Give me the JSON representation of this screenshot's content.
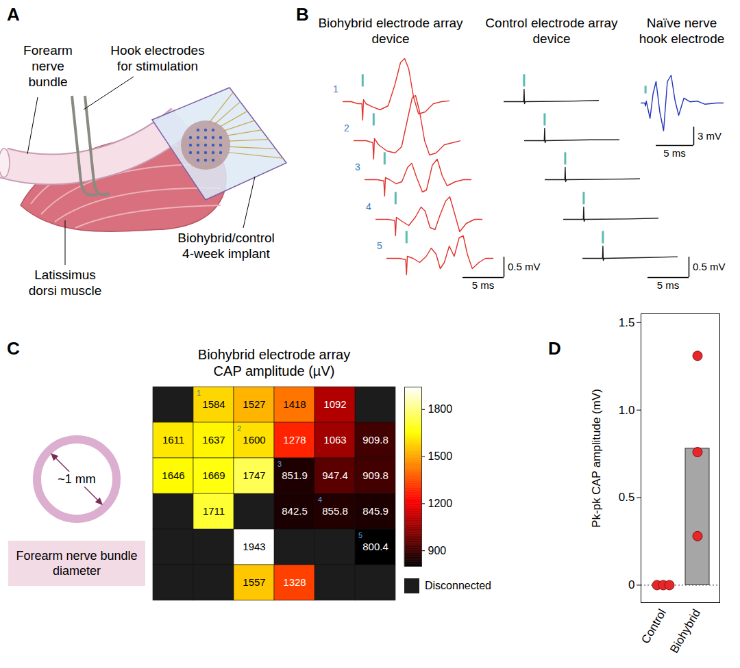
{
  "diagram": {
    "panel_letters": [
      "A",
      "B",
      "C",
      "D"
    ],
    "A": {
      "nerve": "Forearm nerve bundle",
      "hooks": "Hook electrodes for stimulation",
      "implant": "Biohybrid/control 4-week implant",
      "muscle": "Latissimus dorsi muscle"
    },
    "C": {
      "scale": "~1 mm",
      "caption": "Forearm nerve bundle diameter"
    }
  },
  "chart_data": [
    {
      "type": "line",
      "title": "Biohybrid electrode array device",
      "color": "#e0322b",
      "tick_labels": false,
      "xlim": [
        0,
        13
      ],
      "ylim": [
        -0.6,
        1.2
      ],
      "stimulus_ms": 2.4,
      "scale_bar": {
        "x": 5,
        "x_label": "5 ms",
        "y": 0.5,
        "y_label": "0.5 mV"
      },
      "series": [
        {
          "name": "1",
          "x": [
            0,
            1,
            1.8,
            2.3,
            2.4,
            2.5,
            2.8,
            3.5,
            4.5,
            5.5,
            6.3,
            7,
            7.5,
            8,
            8.6,
            9.2,
            10,
            11,
            12,
            13
          ],
          "values": [
            0,
            0,
            -0.05,
            -0.05,
            -0.45,
            0.05,
            -0.05,
            -0.12,
            -0.2,
            -0.1,
            0.4,
            0.95,
            1.05,
            0.8,
            0.1,
            -0.3,
            -0.25,
            -0.05,
            0,
            0.02
          ]
        },
        {
          "name": "2",
          "x": [
            0,
            1.5,
            2.3,
            2.4,
            2.5,
            3,
            4,
            5,
            5.8,
            6.5,
            7.1,
            7.5,
            8,
            8.6,
            9.2,
            10,
            11,
            12,
            13
          ],
          "values": [
            0,
            0,
            -0.05,
            -0.45,
            0.05,
            -0.1,
            -0.25,
            -0.3,
            -0.15,
            0.5,
            1.05,
            1.1,
            0.7,
            0,
            -0.35,
            -0.3,
            -0.1,
            -0.05,
            0
          ]
        },
        {
          "name": "3",
          "x": [
            0,
            1.5,
            2.3,
            2.4,
            2.5,
            3,
            3.8,
            4.5,
            5.2,
            5.7,
            6.3,
            7,
            7.5,
            8.2,
            8.8,
            9.4,
            10,
            11,
            12,
            13
          ],
          "values": [
            0,
            0,
            -0.03,
            -0.4,
            0.05,
            0,
            -0.1,
            -0.05,
            0.3,
            0.4,
            0.05,
            -0.3,
            -0.25,
            0.35,
            0.5,
            0.1,
            -0.15,
            -0.05,
            0,
            0
          ]
        },
        {
          "name": "4",
          "x": [
            0,
            1.5,
            2.3,
            2.4,
            2.5,
            3.2,
            4,
            4.8,
            5.5,
            6,
            6.6,
            7.2,
            7.8,
            8.5,
            9,
            9.5,
            10.2,
            11,
            12,
            13
          ],
          "values": [
            0,
            0,
            -0.03,
            -0.4,
            0.05,
            -0.05,
            -0.15,
            0.05,
            0.3,
            0.2,
            -0.2,
            -0.25,
            0.1,
            0.45,
            0.55,
            0.2,
            -0.3,
            -0.1,
            0,
            0
          ]
        },
        {
          "name": "5",
          "x": [
            0,
            1.5,
            2.3,
            2.4,
            2.5,
            3.2,
            4,
            4.8,
            5.4,
            6,
            6.5,
            7,
            7.6,
            8.2,
            8.8,
            9.3,
            9.8,
            10.4,
            11.2,
            12,
            13
          ],
          "values": [
            0,
            0,
            -0.03,
            -0.4,
            0.05,
            0,
            -0.1,
            0.05,
            0.25,
            0.1,
            -0.25,
            -0.1,
            0.3,
            0.05,
            0.5,
            0.55,
            0.1,
            -0.25,
            -0.1,
            0,
            0
          ]
        }
      ]
    },
    {
      "type": "line",
      "title": "Control electrode array device",
      "color": "#1a1a1a",
      "tick_labels": false,
      "xlim": [
        0,
        13
      ],
      "ylim": [
        -0.6,
        1.2
      ],
      "stimulus_ms": 2.45,
      "scale_bar": {
        "x": 5,
        "x_label": "5 ms",
        "y": 0.5,
        "y_label": "0.5 mV"
      },
      "series": [
        {
          "x": [
            0,
            1.5,
            2.4,
            2.45,
            2.5,
            2.6,
            8,
            11.5
          ],
          "values": [
            0,
            0,
            0,
            0.3,
            -0.05,
            0,
            0.01,
            0.03
          ]
        },
        {
          "x": [
            0,
            1.5,
            2.4,
            2.45,
            2.5,
            2.6,
            8,
            11.5
          ],
          "values": [
            0,
            0,
            0,
            0.3,
            -0.05,
            0,
            0.02,
            0.02
          ]
        },
        {
          "x": [
            0,
            1.5,
            2.4,
            2.45,
            2.5,
            2.6,
            8,
            11.5
          ],
          "values": [
            0,
            0,
            0,
            0.3,
            -0.05,
            0,
            0.01,
            0.02
          ]
        },
        {
          "x": [
            0,
            1.5,
            2.4,
            2.45,
            2.5,
            2.6,
            8,
            11.5
          ],
          "values": [
            0,
            0,
            0,
            0.3,
            -0.05,
            0,
            0.01,
            0.03
          ]
        },
        {
          "x": [
            0,
            1.5,
            2.4,
            2.45,
            2.5,
            2.6,
            8,
            11.5
          ],
          "values": [
            0,
            0,
            0,
            0.3,
            -0.05,
            0,
            0.02,
            0.04
          ]
        }
      ]
    },
    {
      "type": "line",
      "title": "Naïve nerve hook electrode",
      "color": "#2233bb",
      "tick_labels": false,
      "xlim": [
        0,
        11
      ],
      "ylim": [
        -5,
        5
      ],
      "stimulus_ms": 0.6,
      "scale_bar": {
        "x": 5,
        "x_label": "5 ms",
        "y": 3,
        "y_label": "3 mV"
      },
      "series": [
        {
          "x": [
            0,
            0.5,
            0.6,
            0.7,
            1.2,
            1.6,
            2,
            2.5,
            3,
            3.5,
            4,
            4.5,
            5,
            5.7,
            6.5,
            7.5,
            8.5,
            10,
            11
          ],
          "values": [
            0,
            0,
            -0.5,
            0.3,
            -2.5,
            1.5,
            3.5,
            -1.5,
            -4.5,
            3.5,
            4.5,
            0.5,
            -2,
            0.8,
            0.2,
            0.3,
            -0.2,
            0,
            0
          ]
        }
      ]
    },
    {
      "type": "heatmap",
      "title": "Biohybrid electrode array CAP amplitude (µV)",
      "tick_labels": false,
      "data_labels": true,
      "cells": [
        [
          null,
          1584,
          1527,
          1418,
          1092,
          null
        ],
        [
          1611,
          1637,
          1600,
          1278,
          1063,
          909.8
        ],
        [
          1646,
          1669,
          1747,
          851.9,
          947.4,
          909.8
        ],
        [
          null,
          1711,
          null,
          842.5,
          855.8,
          845.9
        ],
        [
          null,
          null,
          1943,
          null,
          null,
          800.4
        ],
        [
          null,
          null,
          1557,
          1328,
          null,
          null
        ]
      ],
      "sites": [
        [
          null,
          1,
          null,
          null,
          null,
          null
        ],
        [
          null,
          null,
          2,
          null,
          null,
          null
        ],
        [
          null,
          null,
          null,
          3,
          null,
          null
        ],
        [
          null,
          null,
          null,
          null,
          4,
          null
        ],
        [
          null,
          null,
          null,
          null,
          null,
          5
        ],
        [
          null,
          null,
          null,
          null,
          null,
          null
        ]
      ],
      "color_range": [
        800.4,
        1943
      ],
      "color_ticks": [
        900,
        1200,
        1500,
        1800
      ],
      "missing_label": "Disconnected"
    },
    {
      "type": "bar",
      "categories": [
        "Control",
        "Biohybrid"
      ],
      "values": [
        0,
        0.78
      ],
      "points": [
        [
          0,
          0,
          0
        ],
        [
          1.31,
          0.76,
          0.28
        ]
      ],
      "color": "#a6a6a6",
      "ylabel": "Pk-pk CAP amplitude (mV)",
      "ylim": [
        -0.1,
        1.55
      ],
      "yticks": [
        0,
        0.5,
        {
          "value": 1,
          "label": "1.0"
        },
        1.5
      ],
      "hline": 0
    }
  ]
}
